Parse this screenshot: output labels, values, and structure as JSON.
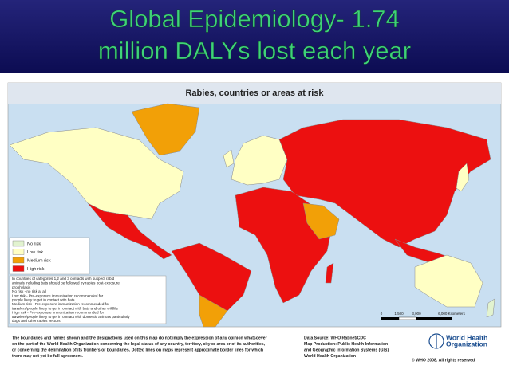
{
  "header": {
    "title_lines": [
      "Global Epidemiology- 1.74",
      "million DALYs lost each year"
    ]
  },
  "map": {
    "title": "Rabies, countries or areas at risk",
    "legend": [
      {
        "label": "No risk",
        "color": "#e2f3cf"
      },
      {
        "label": "Low risk",
        "color": "#ffffc4"
      },
      {
        "label": "Medium risk",
        "color": "#f2a007"
      },
      {
        "label": "High risk",
        "color": "#ec1010"
      }
    ],
    "note": [
      "In countries of categories 1,2 and 3 contacts with suspect rabid",
      "animals including bats should be followed by rabies post-exposure",
      "prophylaxis",
      "No risk - no risk at all",
      "Low risk - Pre-exposure immunization recommended for",
      "people likely to get in contact with bats",
      "Medium risk - Pre-exposure immunization recommended for",
      "travelers/people likely to get in contact with bats and other wildlife",
      "High risk - Pre-exposure immunization recommended for",
      "travelers/people likely to get in contact with domestic animals particularly",
      "dogs and other rabies vectors"
    ],
    "scale": [
      "0",
      "1,500",
      "3,000",
      "6,000 Kilometers"
    ]
  },
  "footer": {
    "disclaimer": [
      "The boundaries and names shown and the designations used on this map do not imply the expression of any opinion whatsoever",
      "on the part of the World Health Organization concerning the legal status of any country, territory, city or area or of its authorities,",
      "or concerning the delimitation of its frontiers or boundaries. Dotted lines on maps represent approximate border lines for which",
      "there may not yet be full agreement."
    ],
    "source": [
      "Data Source: WHO Rabnet/CDC",
      "Map Production: Public Health Information",
      "and Geographic Information Systems (GIS)",
      "World Health Organization"
    ],
    "logo": [
      "World Health",
      "Organization"
    ],
    "copyright": "© WHO 2008. All rights reserved"
  }
}
